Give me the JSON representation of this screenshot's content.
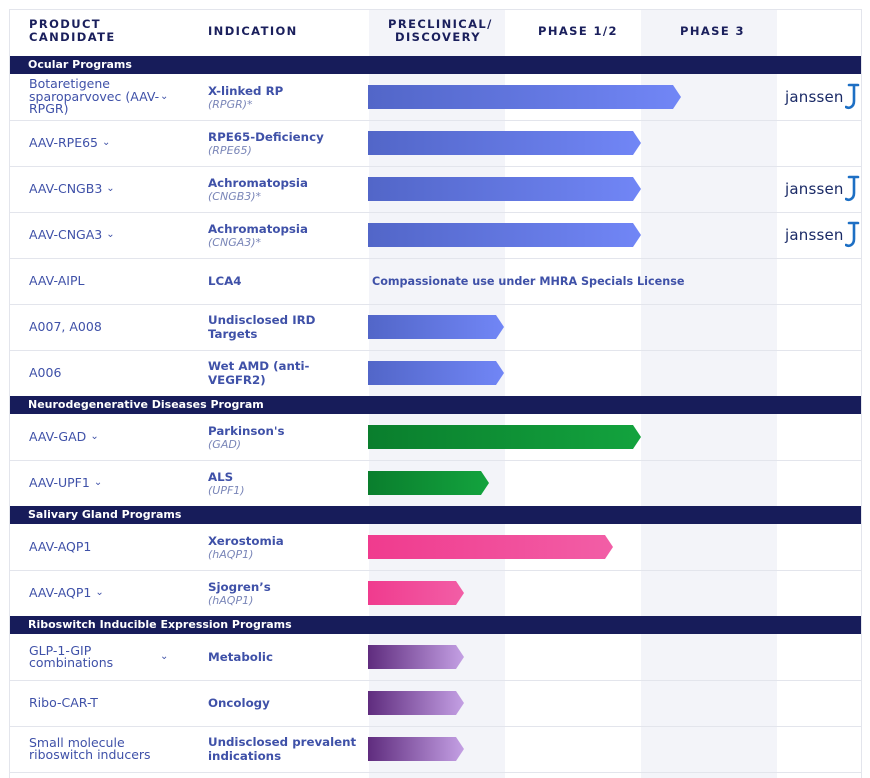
{
  "header": {
    "candidate": "PRODUCT CANDIDATE",
    "indication": "INDICATION",
    "preclinical": "PRECLINICAL/ DISCOVERY",
    "phase12": "PHASE 1/2",
    "phase3": "PHASE 3"
  },
  "sections": [
    {
      "title": "Ocular Programs",
      "rows": [
        {
          "candidate": "Botaretigene sparoparvovec (AAV-RPGR)",
          "chevron": true,
          "indication": "X-linked RP",
          "sub": "(RPGR)*",
          "progress": 0.918,
          "color": "blue",
          "partner": "janssen"
        },
        {
          "candidate": "AAV-RPE65",
          "chevron": true,
          "indication": "RPE65-Deficiency",
          "sub": "(RPE65)",
          "progress": 0.8,
          "color": "blue",
          "partner": ""
        },
        {
          "candidate": "AAV-CNGB3",
          "chevron": true,
          "indication": "Achromatopsia",
          "sub": "(CNGB3)*",
          "progress": 0.8,
          "color": "blue",
          "partner": "janssen"
        },
        {
          "candidate": "AAV-CNGA3",
          "chevron": true,
          "indication": "Achromatopsia",
          "sub": "(CNGA3)*",
          "progress": 0.8,
          "color": "blue",
          "partner": "janssen"
        },
        {
          "candidate": "AAV-AIPL",
          "chevron": false,
          "indication": "LCA4",
          "sub": "",
          "progress": 0,
          "color": "",
          "note": "Compassionate use under MHRA Specials License",
          "partner": ""
        },
        {
          "candidate": "A007, A008",
          "chevron": false,
          "indication": "Undisclosed IRD Targets",
          "sub": "",
          "progress": 0.4,
          "color": "blue",
          "partner": ""
        },
        {
          "candidate": "A006",
          "chevron": false,
          "indication": "Wet AMD (anti-VEGFR2)",
          "sub": "",
          "progress": 0.4,
          "color": "blue",
          "partner": ""
        }
      ]
    },
    {
      "title": "Neurodegenerative Diseases Program",
      "rows": [
        {
          "candidate": "AAV-GAD",
          "chevron": true,
          "indication": "Parkinson's",
          "sub": "(GAD)",
          "progress": 0.8,
          "color": "green",
          "partner": ""
        },
        {
          "candidate": "AAV-UPF1",
          "chevron": true,
          "indication": "ALS",
          "sub": "(UPF1)",
          "progress": 0.356,
          "color": "green",
          "partner": ""
        }
      ]
    },
    {
      "title": "Salivary Gland Programs",
      "rows": [
        {
          "candidate": "AAV-AQP1",
          "chevron": false,
          "indication": "Xerostomia",
          "sub": "(hAQP1)",
          "progress": 0.718,
          "color": "pink",
          "partner": ""
        },
        {
          "candidate": "AAV-AQP1",
          "chevron": true,
          "indication": "Sjogren’s",
          "sub": "(hAQP1)",
          "progress": 0.282,
          "color": "pink",
          "partner": ""
        }
      ]
    },
    {
      "title": "Riboswitch Inducible Expression Programs",
      "rows": [
        {
          "candidate": "GLP-1-GIP combinations",
          "chevron": true,
          "indication": "Metabolic",
          "sub": "",
          "progress": 0.282,
          "color": "purple",
          "partner": ""
        },
        {
          "candidate": "Ribo-CAR-T",
          "chevron": false,
          "indication": "Oncology",
          "sub": "",
          "progress": 0.282,
          "color": "purple",
          "partner": ""
        },
        {
          "candidate": "Small molecule riboswitch inducers",
          "chevron": false,
          "indication": "Undisclosed prevalent indications",
          "sub": "",
          "progress": 0.282,
          "color": "purple",
          "partner": ""
        }
      ]
    }
  ],
  "colors": {
    "blue": [
      "#5266c8",
      "#7186f6"
    ],
    "green": [
      "#0a7e2d",
      "#13a33e"
    ],
    "pink": [
      "#f03b8e",
      "#f25ea6"
    ],
    "purple": [
      "#5f2c7e",
      "#c4a0e4"
    ]
  },
  "icons": {
    "chevron": "chevron-down-icon",
    "partner": "janssen-logo"
  }
}
